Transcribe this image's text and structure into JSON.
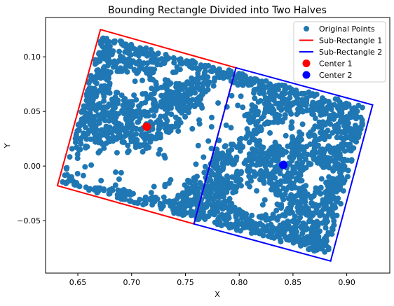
{
  "chart_data": {
    "type": "scatter",
    "title": "Bounding Rectangle Divided into Two Halves",
    "xlabel": "X",
    "ylabel": "Y",
    "xlim": [
      0.62,
      0.94
    ],
    "ylim": [
      -0.098,
      0.136
    ],
    "xticks": [
      0.65,
      0.7,
      0.75,
      0.8,
      0.85,
      0.9
    ],
    "xtick_labels": [
      "0.65",
      "0.70",
      "0.75",
      "0.80",
      "0.85",
      "0.90"
    ],
    "yticks": [
      -0.05,
      0.0,
      0.05,
      0.1
    ],
    "ytick_labels": [
      "−0.05",
      "0.00",
      "0.05",
      "0.10"
    ],
    "grid": false,
    "legend_position": "top-right",
    "legend": [
      {
        "key": "points",
        "label": "Original Points",
        "kind": "marker",
        "color": "#1f77b4"
      },
      {
        "key": "rect1",
        "label": "Sub-Rectangle 1",
        "kind": "line",
        "color": "#ff0000"
      },
      {
        "key": "rect2",
        "label": "Sub-Rectangle 2",
        "kind": "line",
        "color": "#0000ff"
      },
      {
        "key": "center1",
        "label": "Center 1",
        "kind": "marker",
        "color": "#ff0000"
      },
      {
        "key": "center2",
        "label": "Center 2",
        "kind": "marker",
        "color": "#0000ff"
      }
    ],
    "scatter_color": "#1f77b4",
    "sub_rectangle_1": {
      "color": "#ff0000",
      "corners": [
        [
          0.631,
          -0.018
        ],
        [
          0.671,
          0.125
        ],
        [
          0.797,
          0.09
        ],
        [
          0.758,
          -0.053
        ]
      ]
    },
    "sub_rectangle_2": {
      "color": "#0000ff",
      "corners": [
        [
          0.758,
          -0.053
        ],
        [
          0.797,
          0.09
        ],
        [
          0.924,
          0.056
        ],
        [
          0.885,
          -0.087
        ]
      ]
    },
    "center_1": {
      "x": 0.714,
      "y": 0.036,
      "color": "#ff0000"
    },
    "center_2": {
      "x": 0.841,
      "y": 0.001,
      "color": "#0000ff"
    },
    "points_description_region": [
      [
        0.635,
        -0.016
      ],
      [
        0.672,
        0.119
      ],
      [
        0.918,
        0.052
      ],
      [
        0.882,
        -0.081
      ]
    ]
  }
}
